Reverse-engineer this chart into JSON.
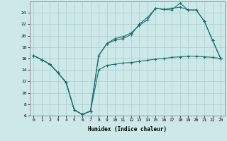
{
  "xlabel": "Humidex (Indice chaleur)",
  "bg_color": "#cce8e8",
  "grid_color": "#aacccc",
  "line_color": "#1a6e6e",
  "x_min": -0.5,
  "x_max": 23.5,
  "y_min": 6,
  "y_max": 26,
  "yticks": [
    6,
    8,
    10,
    12,
    14,
    16,
    18,
    20,
    22,
    24
  ],
  "xticks": [
    0,
    1,
    2,
    3,
    4,
    5,
    6,
    7,
    8,
    9,
    10,
    11,
    12,
    13,
    14,
    15,
    16,
    17,
    18,
    19,
    20,
    21,
    22,
    23
  ],
  "line1_x": [
    0,
    1,
    2,
    3,
    4,
    5,
    6,
    7,
    8,
    9,
    10,
    11,
    12,
    13,
    14,
    15,
    16,
    17,
    18,
    19,
    20,
    21,
    22,
    23
  ],
  "line1_y": [
    16.5,
    15.8,
    15.0,
    13.5,
    11.8,
    7.0,
    6.2,
    6.8,
    14.0,
    14.8,
    15.0,
    15.2,
    15.3,
    15.5,
    15.7,
    15.9,
    16.0,
    16.2,
    16.3,
    16.4,
    16.4,
    16.3,
    16.2,
    16.0
  ],
  "line2_x": [
    0,
    1,
    2,
    3,
    4,
    5,
    6,
    7,
    8,
    9,
    10,
    11,
    12,
    13,
    14,
    15,
    16,
    17,
    18,
    19,
    20,
    21,
    22,
    23
  ],
  "line2_y": [
    16.5,
    15.8,
    15.0,
    13.5,
    11.8,
    7.0,
    6.2,
    6.8,
    16.5,
    18.6,
    19.5,
    19.8,
    20.5,
    21.8,
    22.8,
    24.8,
    24.6,
    24.5,
    25.7,
    24.5,
    24.5,
    22.5,
    19.2,
    16.0
  ],
  "line3_x": [
    0,
    1,
    2,
    3,
    4,
    5,
    6,
    7,
    8,
    9,
    10,
    11,
    12,
    13,
    14,
    15,
    16,
    17,
    18,
    19,
    20,
    21,
    22,
    23
  ],
  "line3_y": [
    16.5,
    15.8,
    15.0,
    13.5,
    11.8,
    7.0,
    6.2,
    6.8,
    16.5,
    18.6,
    19.2,
    19.5,
    20.2,
    22.0,
    23.2,
    24.8,
    24.6,
    24.8,
    25.0,
    24.5,
    24.5,
    22.5,
    19.2,
    16.0
  ]
}
